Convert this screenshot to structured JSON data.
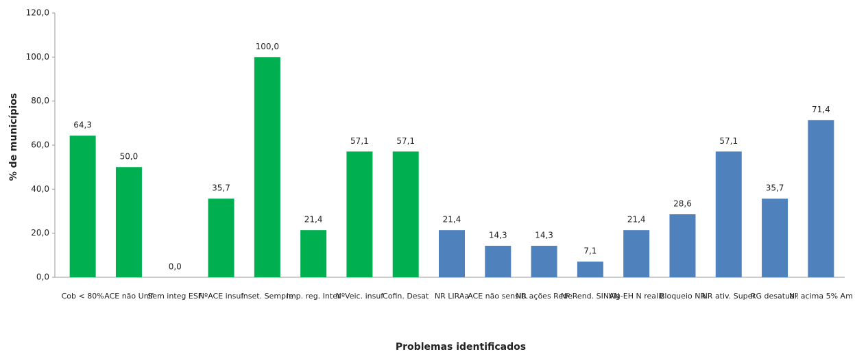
{
  "chart_data": {
    "type": "bar",
    "x_label": "Problemas identificados",
    "y_label": "% de municípios",
    "categories": [
      "Cob < 80%",
      "ACE não Unif",
      "Sem integ ESF",
      "NºACE insuf",
      "Inset. Sempre",
      "Imp. reg. Inter",
      "NºVeic. insuf",
      "Cofin. Desat",
      "NR LIRAa",
      "ACE não sensib.",
      "NR ações Rede",
      "Nº Rend. SINAN",
      "Vig-EH N realiz",
      "Bloqueio NR",
      "NR ativ. Super",
      "RG desatual.",
      "Nº acima 5% Am"
    ],
    "values": [
      64.3,
      50.0,
      0.0,
      35.7,
      100.0,
      21.4,
      57.1,
      57.1,
      21.4,
      14.3,
      14.3,
      7.1,
      21.4,
      28.6,
      57.1,
      35.7,
      71.4
    ],
    "value_labels": [
      "64,3",
      "50,0",
      "0,0",
      "35,7",
      "100,0",
      "21,4",
      "57,1",
      "57,1",
      "21,4",
      "14,3",
      "14,3",
      "7,1",
      "21,4",
      "28,6",
      "57,1",
      "35,7",
      "71,4"
    ],
    "colors": [
      "#00b050",
      "#00b050",
      "#00b050",
      "#00b050",
      "#00b050",
      "#00b050",
      "#00b050",
      "#00b050",
      "#4f81bd",
      "#4f81bd",
      "#4f81bd",
      "#4f81bd",
      "#4f81bd",
      "#4f81bd",
      "#4f81bd",
      "#4f81bd",
      "#4f81bd"
    ],
    "ylim": [
      0,
      120
    ],
    "yticks": [
      {
        "value": 0,
        "label": "0,0"
      },
      {
        "value": 20,
        "label": "20,0"
      },
      {
        "value": 40,
        "label": "40,0"
      },
      {
        "value": 60,
        "label": "60,0"
      },
      {
        "value": 80,
        "label": "80,0"
      },
      {
        "value": 100,
        "label": "100,0"
      },
      {
        "value": 120,
        "label": "120,0"
      }
    ],
    "grid": false
  }
}
